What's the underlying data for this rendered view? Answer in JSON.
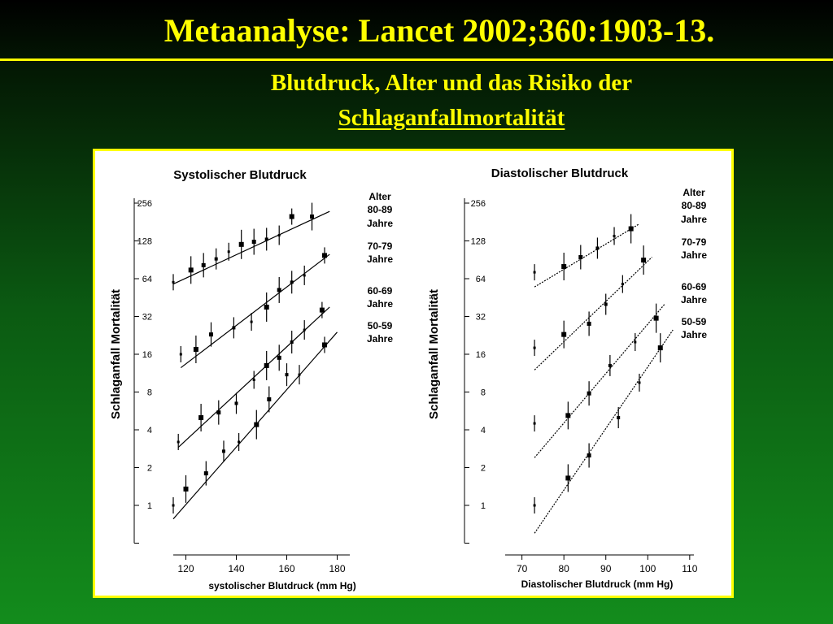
{
  "slide": {
    "title": "Metaanalyse: Lancet 2002;360:1903-13.",
    "subtitle_line1": "Blutdruck, Alter und das Risiko der",
    "subtitle_line2": "Schlaganfallmortalität"
  },
  "colors": {
    "title": "#ffff00",
    "frame": "#ffff00",
    "plot_ink": "#000000",
    "panel_background": "#ffffff"
  },
  "chart_data": [
    {
      "type": "scatter",
      "title": "Systolischer Blutdruck",
      "xlabel": "systolischer Blutdruck (mm Hg)",
      "ylabel": "Schlaganfall Mortalität",
      "xlim": [
        115,
        185
      ],
      "ylim": [
        0.5,
        256
      ],
      "y_scale": "log2",
      "x_ticks": [
        "120",
        "140",
        "160",
        "180"
      ],
      "y_ticks": [
        "256",
        "128",
        "64",
        "32",
        "16",
        "8",
        "4",
        "2",
        "1"
      ],
      "legend_header": [
        "Alter"
      ],
      "legend_position": "right",
      "series": [
        {
          "name": "80-89 Jahre",
          "label_lines": [
            "80-89",
            "Jahre"
          ],
          "x": [
            115,
            122,
            127,
            132,
            137,
            142,
            147,
            152,
            157,
            162,
            170
          ],
          "y": [
            60,
            75,
            82,
            92,
            105,
            120,
            126,
            132,
            142,
            200,
            200
          ],
          "fit": [
            [
              115,
              58
            ],
            [
              177,
              220
            ]
          ]
        },
        {
          "name": "70-79 Jahre",
          "label_lines": [
            "70-79",
            "Jahre"
          ],
          "x": [
            118,
            124,
            130,
            139,
            146,
            152,
            157,
            162,
            167,
            175
          ],
          "y": [
            16,
            17.5,
            23,
            26,
            29,
            38,
            52,
            60,
            68,
            98
          ],
          "fit": [
            [
              118,
              12.5
            ],
            [
              177,
              100
            ]
          ]
        },
        {
          "name": "60-69 Jahre",
          "label_lines": [
            "60-69",
            "Jahre"
          ],
          "x": [
            117,
            126,
            133,
            140,
            147,
            152,
            157,
            162,
            167,
            174
          ],
          "y": [
            3.2,
            5,
            5.5,
            6.5,
            10,
            13,
            15,
            20,
            25,
            36
          ],
          "fit": [
            [
              117,
              2.9
            ],
            [
              177,
              38
            ]
          ]
        },
        {
          "name": "50-59 Jahre",
          "label_lines": [
            "50-59",
            "Jahre"
          ],
          "x": [
            115,
            120,
            128,
            135,
            141,
            148,
            153,
            160,
            165,
            175
          ],
          "y": [
            1.0,
            1.35,
            1.8,
            2.7,
            3.2,
            4.4,
            7.0,
            11,
            11,
            19
          ],
          "fit": [
            [
              115,
              0.78
            ],
            [
              180,
              24
            ]
          ]
        }
      ]
    },
    {
      "type": "scatter",
      "title": "Diastolischer Blutdruck",
      "xlabel": "Diastolischer Blutdruck (mm Hg)",
      "ylabel": "Schlaganfall Mortalität",
      "xlim": [
        66,
        111
      ],
      "ylim": [
        0.5,
        256
      ],
      "y_scale": "log2",
      "x_ticks": [
        "70",
        "80",
        "90",
        "100",
        "110"
      ],
      "y_ticks": [
        "256",
        "128",
        "64",
        "32",
        "16",
        "8",
        "4",
        "2",
        "1"
      ],
      "legend_header": [
        "Alter"
      ],
      "legend_position": "right",
      "series": [
        {
          "name": "80-89 Jahre",
          "label_lines": [
            "80-89",
            "Jahre"
          ],
          "x": [
            73,
            80,
            84,
            88,
            92,
            96
          ],
          "y": [
            72,
            80,
            95,
            112,
            140,
            160
          ],
          "fit": [
            [
              73,
              55
            ],
            [
              98,
              175
            ]
          ]
        },
        {
          "name": "70-79 Jahre",
          "label_lines": [
            "70-79",
            "Jahre"
          ],
          "x": [
            73,
            80,
            86,
            90,
            94,
            99
          ],
          "y": [
            18,
            23,
            28,
            40,
            58,
            90
          ],
          "fit": [
            [
              73,
              12
            ],
            [
              101,
              95
            ]
          ]
        },
        {
          "name": "60-69 Jahre",
          "label_lines": [
            "60-69",
            "Jahre"
          ],
          "x": [
            73,
            81,
            86,
            91,
            97,
            102
          ],
          "y": [
            4.5,
            5.2,
            7.8,
            13,
            20,
            31
          ],
          "fit": [
            [
              73,
              2.4
            ],
            [
              104,
              40
            ]
          ]
        },
        {
          "name": "50-59 Jahre",
          "label_lines": [
            "50-59",
            "Jahre"
          ],
          "x": [
            73,
            81,
            86,
            93,
            98,
            103
          ],
          "y": [
            1.0,
            1.65,
            2.5,
            5.0,
            9.5,
            18
          ],
          "fit": [
            [
              73,
              0.6
            ],
            [
              106,
              25
            ]
          ]
        }
      ]
    }
  ]
}
